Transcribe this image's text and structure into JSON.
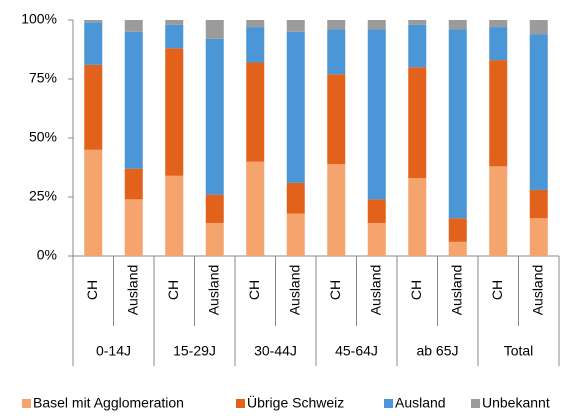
{
  "chart_data": {
    "type": "stacked_bar",
    "categories": [
      "CH",
      "Ausland",
      "CH",
      "Ausland",
      "CH",
      "Ausland",
      "CH",
      "Ausland",
      "CH",
      "Ausland",
      "CH",
      "Ausland"
    ],
    "groups": [
      "0-14J",
      "15-29J",
      "30-44J",
      "45-64J",
      "ab 65J",
      "Total"
    ],
    "series": [
      {
        "name": "Basel mit Agglomeration",
        "color": "#f5a46e",
        "values": [
          45,
          24,
          34,
          14,
          40,
          18,
          39,
          14,
          33,
          6,
          38,
          16
        ]
      },
      {
        "name": "Übrige Schweiz",
        "color": "#e2611b",
        "values": [
          36,
          13,
          54,
          12,
          42,
          13,
          38,
          10,
          47,
          10,
          45,
          12
        ]
      },
      {
        "name": "Ausland",
        "color": "#4a96d6",
        "values": [
          18,
          58,
          10,
          66,
          15,
          64,
          19,
          72,
          18,
          80,
          14,
          66
        ]
      },
      {
        "name": "Unbekannt",
        "color": "#9b9b9b",
        "values": [
          1,
          5,
          2,
          8,
          3,
          5,
          4,
          4,
          2,
          4,
          3,
          6
        ]
      }
    ],
    "ylim": [
      0,
      100
    ],
    "yticks": [
      {
        "value": 0,
        "label": "0%"
      },
      {
        "value": 25,
        "label": "25%"
      },
      {
        "value": 50,
        "label": "50%"
      },
      {
        "value": 75,
        "label": "75%"
      },
      {
        "value": 100,
        "label": "100%"
      }
    ],
    "legend": "bottom"
  }
}
